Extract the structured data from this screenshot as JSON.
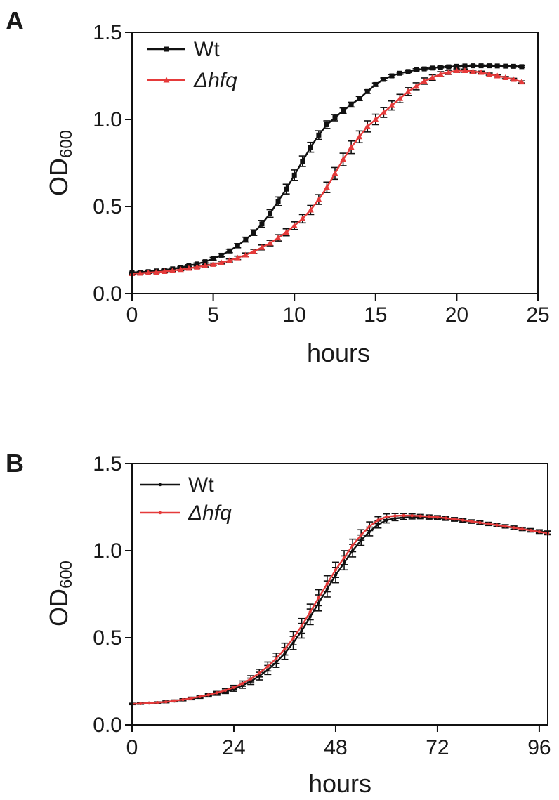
{
  "figure": {
    "panels": [
      "A",
      "B"
    ]
  },
  "chart_data": [
    {
      "panel": "A",
      "type": "line",
      "title": "",
      "xlabel": "hours",
      "ylabel_main": "OD",
      "ylabel_sub": "600",
      "xlim": [
        0,
        25
      ],
      "ylim": [
        0,
        1.5
      ],
      "xticks": [
        0,
        5,
        10,
        15,
        20,
        25
      ],
      "xtick_labels": [
        "0",
        "5",
        "10",
        "15",
        "20",
        "25"
      ],
      "yticks": [
        0,
        0.5,
        1.0,
        1.5
      ],
      "ytick_labels": [
        "0.0",
        "0.5",
        "1.0",
        "1.5"
      ],
      "grid": false,
      "legend_position": "top-left",
      "x": [
        0,
        0.5,
        1,
        1.5,
        2,
        2.5,
        3,
        3.5,
        4,
        4.5,
        5,
        5.5,
        6,
        6.5,
        7,
        7.5,
        8,
        8.5,
        9,
        9.5,
        10,
        10.5,
        11,
        11.5,
        12,
        12.5,
        13,
        13.5,
        14,
        14.5,
        15,
        15.5,
        16,
        16.5,
        17,
        17.5,
        18,
        18.5,
        19,
        19.5,
        20,
        20.5,
        21,
        21.5,
        22,
        22.5,
        23,
        23.5,
        24
      ],
      "series": [
        {
          "name": "Wt",
          "color": "#111111",
          "marker": "square",
          "values": [
            0.12,
            0.123,
            0.126,
            0.13,
            0.135,
            0.142,
            0.15,
            0.16,
            0.17,
            0.183,
            0.2,
            0.22,
            0.245,
            0.275,
            0.31,
            0.35,
            0.4,
            0.46,
            0.53,
            0.6,
            0.68,
            0.76,
            0.84,
            0.91,
            0.97,
            1.01,
            1.05,
            1.085,
            1.12,
            1.16,
            1.2,
            1.23,
            1.25,
            1.265,
            1.275,
            1.285,
            1.29,
            1.295,
            1.3,
            1.302,
            1.305,
            1.307,
            1.308,
            1.308,
            1.308,
            1.307,
            1.306,
            1.305,
            1.303
          ],
          "errors": [
            0.004,
            0.004,
            0.004,
            0.004,
            0.005,
            0.005,
            0.005,
            0.006,
            0.006,
            0.007,
            0.008,
            0.009,
            0.01,
            0.012,
            0.014,
            0.016,
            0.02,
            0.022,
            0.025,
            0.028,
            0.03,
            0.03,
            0.028,
            0.025,
            0.022,
            0.018,
            0.016,
            0.014,
            0.012,
            0.01,
            0.009,
            0.008,
            0.007,
            0.006,
            0.006,
            0.006,
            0.006,
            0.005,
            0.005,
            0.005,
            0.005,
            0.005,
            0.005,
            0.005,
            0.005,
            0.005,
            0.005,
            0.005,
            0.005
          ]
        },
        {
          "name": "Δhfq",
          "color": "#e53a3a",
          "marker": "triangle",
          "values": [
            0.115,
            0.117,
            0.12,
            0.123,
            0.127,
            0.132,
            0.138,
            0.145,
            0.152,
            0.16,
            0.168,
            0.178,
            0.19,
            0.205,
            0.222,
            0.242,
            0.265,
            0.29,
            0.32,
            0.352,
            0.39,
            0.43,
            0.48,
            0.54,
            0.61,
            0.69,
            0.77,
            0.84,
            0.9,
            0.96,
            1.0,
            1.04,
            1.08,
            1.12,
            1.16,
            1.19,
            1.22,
            1.24,
            1.26,
            1.27,
            1.28,
            1.28,
            1.275,
            1.27,
            1.26,
            1.25,
            1.24,
            1.23,
            1.215
          ],
          "errors": [
            0.004,
            0.004,
            0.004,
            0.005,
            0.005,
            0.005,
            0.006,
            0.006,
            0.006,
            0.007,
            0.007,
            0.008,
            0.009,
            0.01,
            0.011,
            0.012,
            0.014,
            0.016,
            0.018,
            0.02,
            0.022,
            0.024,
            0.026,
            0.028,
            0.03,
            0.034,
            0.036,
            0.036,
            0.034,
            0.032,
            0.03,
            0.028,
            0.026,
            0.024,
            0.022,
            0.02,
            0.018,
            0.016,
            0.014,
            0.012,
            0.01,
            0.009,
            0.008,
            0.007,
            0.006,
            0.006,
            0.006,
            0.006,
            0.006
          ]
        }
      ]
    },
    {
      "panel": "B",
      "type": "line",
      "title": "",
      "xlabel": "hours",
      "ylabel_main": "OD",
      "ylabel_sub": "600",
      "xlim": [
        0,
        98
      ],
      "ylim": [
        0,
        1.5
      ],
      "xticks": [
        0,
        24,
        48,
        72,
        96
      ],
      "xtick_labels": [
        "0",
        "24",
        "48",
        "72",
        "96"
      ],
      "yticks": [
        0,
        0.5,
        1.0,
        1.5
      ],
      "ytick_labels": [
        "0.0",
        "0.5",
        "1.0",
        "1.5"
      ],
      "grid": false,
      "legend_position": "top-left",
      "x": [
        0,
        2,
        4,
        6,
        8,
        10,
        12,
        14,
        16,
        18,
        20,
        22,
        24,
        26,
        28,
        30,
        32,
        34,
        36,
        38,
        40,
        42,
        44,
        46,
        48,
        50,
        52,
        54,
        56,
        58,
        60,
        62,
        64,
        66,
        68,
        70,
        72,
        74,
        76,
        78,
        80,
        82,
        84,
        86,
        88,
        90,
        92,
        94,
        96,
        98
      ],
      "series": [
        {
          "name": "Wt",
          "color": "#111111",
          "marker": "dot",
          "values": [
            0.12,
            0.122,
            0.125,
            0.128,
            0.132,
            0.137,
            0.143,
            0.15,
            0.158,
            0.167,
            0.178,
            0.19,
            0.205,
            0.225,
            0.25,
            0.28,
            0.315,
            0.36,
            0.41,
            0.47,
            0.54,
            0.62,
            0.7,
            0.78,
            0.86,
            0.93,
            1.0,
            1.06,
            1.11,
            1.15,
            1.175,
            1.185,
            1.19,
            1.192,
            1.192,
            1.19,
            1.187,
            1.183,
            1.178,
            1.172,
            1.166,
            1.16,
            1.153,
            1.146,
            1.139,
            1.132,
            1.125,
            1.118,
            1.111,
            1.104
          ],
          "errors": [
            0.004,
            0.004,
            0.004,
            0.004,
            0.005,
            0.005,
            0.005,
            0.006,
            0.006,
            0.007,
            0.008,
            0.01,
            0.012,
            0.015,
            0.018,
            0.022,
            0.026,
            0.03,
            0.034,
            0.038,
            0.042,
            0.045,
            0.046,
            0.046,
            0.044,
            0.04,
            0.036,
            0.03,
            0.025,
            0.02,
            0.016,
            0.013,
            0.011,
            0.01,
            0.009,
            0.009,
            0.009,
            0.009,
            0.009,
            0.009,
            0.009,
            0.009,
            0.009,
            0.009,
            0.009,
            0.009,
            0.009,
            0.009,
            0.009,
            0.009
          ]
        },
        {
          "name": "Δhfq",
          "color": "#e53a3a",
          "marker": "dot",
          "values": [
            0.12,
            0.122,
            0.125,
            0.128,
            0.132,
            0.138,
            0.145,
            0.153,
            0.162,
            0.172,
            0.184,
            0.198,
            0.215,
            0.237,
            0.264,
            0.297,
            0.335,
            0.382,
            0.435,
            0.497,
            0.568,
            0.648,
            0.73,
            0.81,
            0.89,
            0.96,
            1.03,
            1.09,
            1.14,
            1.175,
            1.195,
            1.2,
            1.202,
            1.201,
            1.199,
            1.196,
            1.192,
            1.187,
            1.181,
            1.175,
            1.168,
            1.161,
            1.154,
            1.147,
            1.14,
            1.132,
            1.124,
            1.116,
            1.108,
            1.1
          ],
          "errors": [
            0.004,
            0.004,
            0.004,
            0.004,
            0.005,
            0.005,
            0.005,
            0.006,
            0.006,
            0.007,
            0.008,
            0.01,
            0.012,
            0.015,
            0.018,
            0.022,
            0.026,
            0.03,
            0.034,
            0.038,
            0.042,
            0.045,
            0.046,
            0.046,
            0.044,
            0.04,
            0.036,
            0.03,
            0.025,
            0.02,
            0.016,
            0.013,
            0.011,
            0.01,
            0.009,
            0.009,
            0.009,
            0.009,
            0.009,
            0.009,
            0.009,
            0.009,
            0.009,
            0.009,
            0.009,
            0.009,
            0.009,
            0.009,
            0.009,
            0.009
          ]
        }
      ]
    }
  ]
}
